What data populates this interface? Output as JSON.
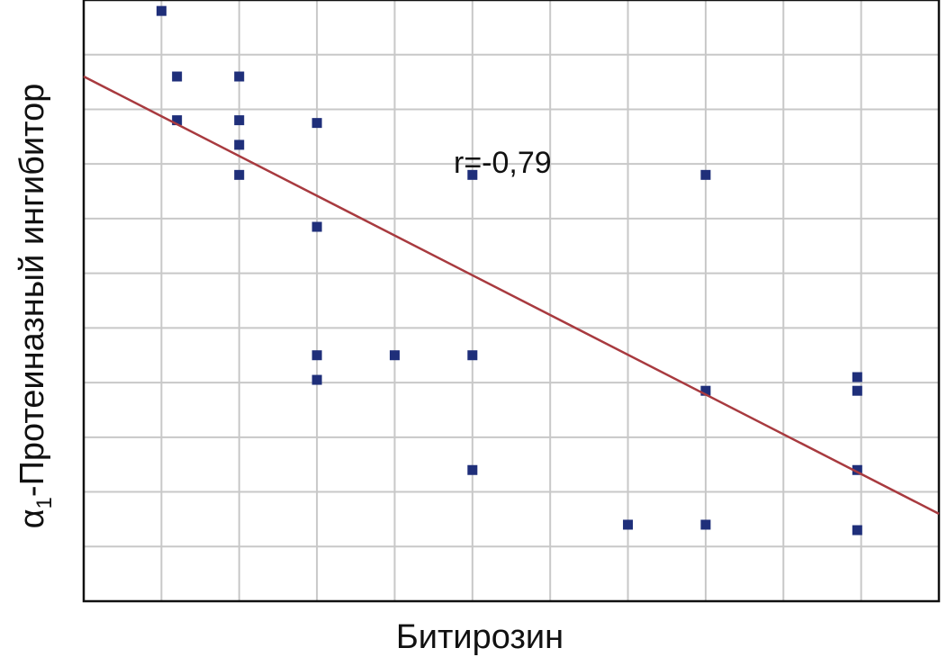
{
  "chart_data": {
    "type": "scatter",
    "title": "",
    "xlabel": "Битирозин",
    "ylabel": {
      "prefix": "α",
      "subscript": "1",
      "suffix": "-Протеиназный ингибитор"
    },
    "annotation": "r=-0,79",
    "grid": true,
    "show_tick_labels": false,
    "xlim": [
      0,
      11
    ],
    "ylim": [
      0,
      11
    ],
    "x_gridlines": [
      1,
      2,
      3,
      4,
      5,
      6,
      7,
      8,
      9,
      10
    ],
    "y_gridlines": [
      1,
      2,
      3,
      4,
      5,
      6,
      7,
      8,
      9,
      10
    ],
    "series": [
      {
        "points": [
          {
            "x": 1.0,
            "y": 10.8
          },
          {
            "x": 1.2,
            "y": 9.6
          },
          {
            "x": 1.2,
            "y": 8.8
          },
          {
            "x": 2.0,
            "y": 9.6
          },
          {
            "x": 2.0,
            "y": 8.8
          },
          {
            "x": 2.0,
            "y": 8.35
          },
          {
            "x": 2.0,
            "y": 7.8
          },
          {
            "x": 3.0,
            "y": 8.75
          },
          {
            "x": 3.0,
            "y": 6.85
          },
          {
            "x": 3.0,
            "y": 4.5
          },
          {
            "x": 3.0,
            "y": 4.05
          },
          {
            "x": 4.0,
            "y": 4.5
          },
          {
            "x": 5.0,
            "y": 7.8
          },
          {
            "x": 5.0,
            "y": 4.5
          },
          {
            "x": 5.0,
            "y": 2.4
          },
          {
            "x": 7.0,
            "y": 1.4
          },
          {
            "x": 8.0,
            "y": 7.8
          },
          {
            "x": 8.0,
            "y": 3.85
          },
          {
            "x": 8.0,
            "y": 1.4
          },
          {
            "x": 9.95,
            "y": 4.1
          },
          {
            "x": 9.95,
            "y": 3.85
          },
          {
            "x": 9.95,
            "y": 2.4
          },
          {
            "x": 9.95,
            "y": 1.3
          }
        ]
      }
    ],
    "trendline": {
      "x": [
        0,
        11
      ],
      "y": [
        9.6,
        1.6
      ]
    },
    "colors": {
      "point": "#1f2f7a",
      "trendline": "#a83a3f",
      "grid": "#c8c8c8",
      "frame": "#111111"
    }
  }
}
